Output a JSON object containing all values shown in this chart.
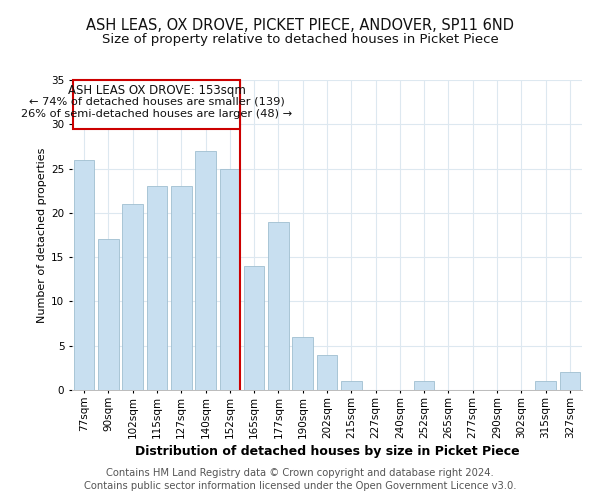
{
  "title": "ASH LEAS, OX DROVE, PICKET PIECE, ANDOVER, SP11 6ND",
  "subtitle": "Size of property relative to detached houses in Picket Piece",
  "xlabel": "Distribution of detached houses by size in Picket Piece",
  "ylabel": "Number of detached properties",
  "footer_line1": "Contains HM Land Registry data © Crown copyright and database right 2024.",
  "footer_line2": "Contains public sector information licensed under the Open Government Licence v3.0.",
  "bar_labels": [
    "77sqm",
    "90sqm",
    "102sqm",
    "115sqm",
    "127sqm",
    "140sqm",
    "152sqm",
    "165sqm",
    "177sqm",
    "190sqm",
    "202sqm",
    "215sqm",
    "227sqm",
    "240sqm",
    "252sqm",
    "265sqm",
    "277sqm",
    "290sqm",
    "302sqm",
    "315sqm",
    "327sqm"
  ],
  "bar_values": [
    26,
    17,
    21,
    23,
    23,
    27,
    25,
    14,
    19,
    6,
    4,
    1,
    0,
    0,
    1,
    0,
    0,
    0,
    0,
    1,
    2
  ],
  "bar_color": "#c8dff0",
  "bar_edge_color": "#a0bfd0",
  "vline_x_index": 6,
  "vline_color": "#cc0000",
  "annotation_title": "ASH LEAS OX DROVE: 153sqm",
  "annotation_line1": "← 74% of detached houses are smaller (139)",
  "annotation_line2": "26% of semi-detached houses are larger (48) →",
  "annotation_box_edge": "#cc0000",
  "ylim": [
    0,
    35
  ],
  "yticks": [
    0,
    5,
    10,
    15,
    20,
    25,
    30,
    35
  ],
  "background_color": "#ffffff",
  "grid_color": "#dde8f0",
  "title_fontsize": 10.5,
  "subtitle_fontsize": 9.5,
  "xlabel_fontsize": 9,
  "ylabel_fontsize": 8,
  "tick_fontsize": 7.5,
  "footer_fontsize": 7.2,
  "annot_fontsize": 8.5
}
